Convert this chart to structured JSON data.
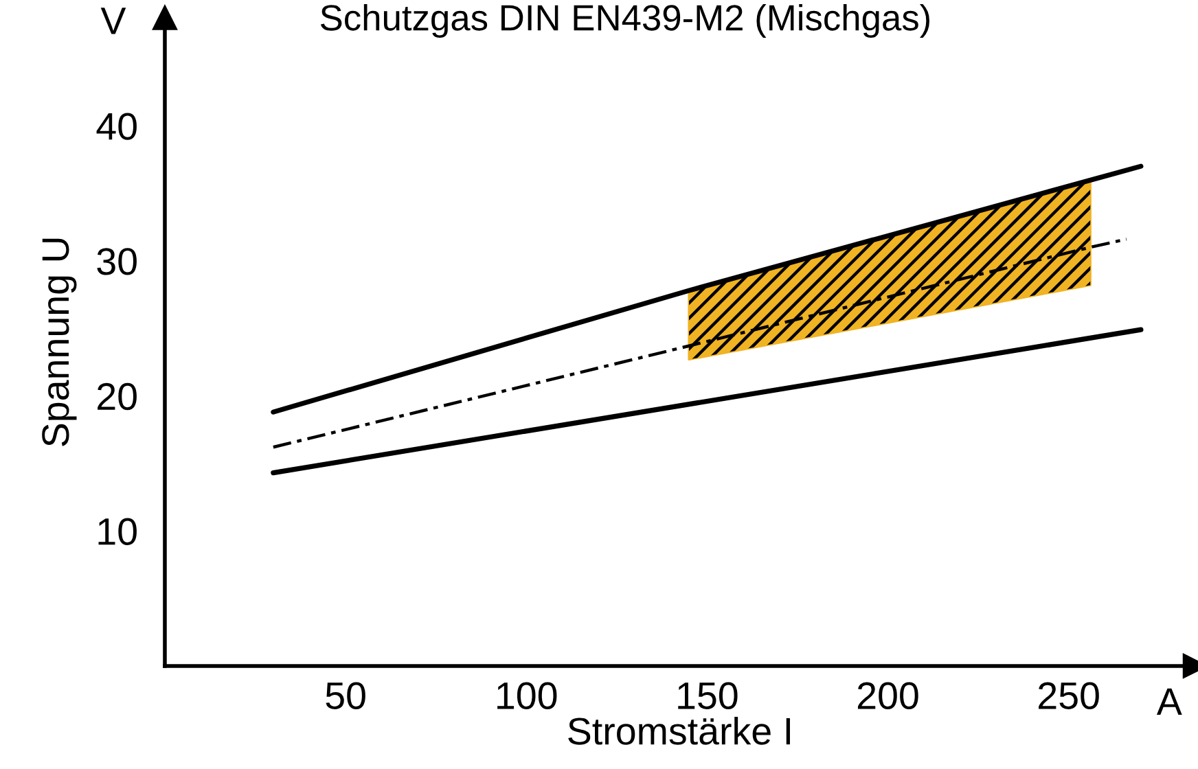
{
  "chart_data": {
    "type": "line",
    "title": "Schutzgas DIN EN439-M2 (Mischgas)",
    "xlabel": "Stromstärke I",
    "ylabel": "Spannung U",
    "annotations": [
      "V",
      "A"
    ],
    "series": [
      {
        "color": "#000000",
        "x": [
          30,
          145,
          270
        ],
        "values": [
          18.8,
          27.8,
          37.0
        ],
        "line_style": "solid"
      },
      {
        "color": "#000000",
        "x": [
          30,
          145,
          256,
          266
        ],
        "values": [
          16.2,
          23.7,
          31.0,
          31.6
        ],
        "line_style": "dashdot",
        "colors": [
          null,
          "#f0b323",
          "#f0b323",
          null
        ],
        "lower": [
          null,
          22.7,
          28.2,
          null
        ],
        "upper": [
          null,
          27.8,
          35.8,
          null
        ]
      },
      {
        "color": "#000000",
        "x": [
          30,
          270
        ],
        "values": [
          14.3,
          24.9
        ],
        "line_style": "solid"
      }
    ],
    "xlim": [
      0,
      285
    ],
    "ylim": [
      0,
      48
    ],
    "xticks": [
      50,
      100,
      150,
      200,
      250
    ],
    "yticks": [
      10,
      20,
      30,
      40
    ],
    "grid": false,
    "legend": false,
    "marker": "none"
  }
}
